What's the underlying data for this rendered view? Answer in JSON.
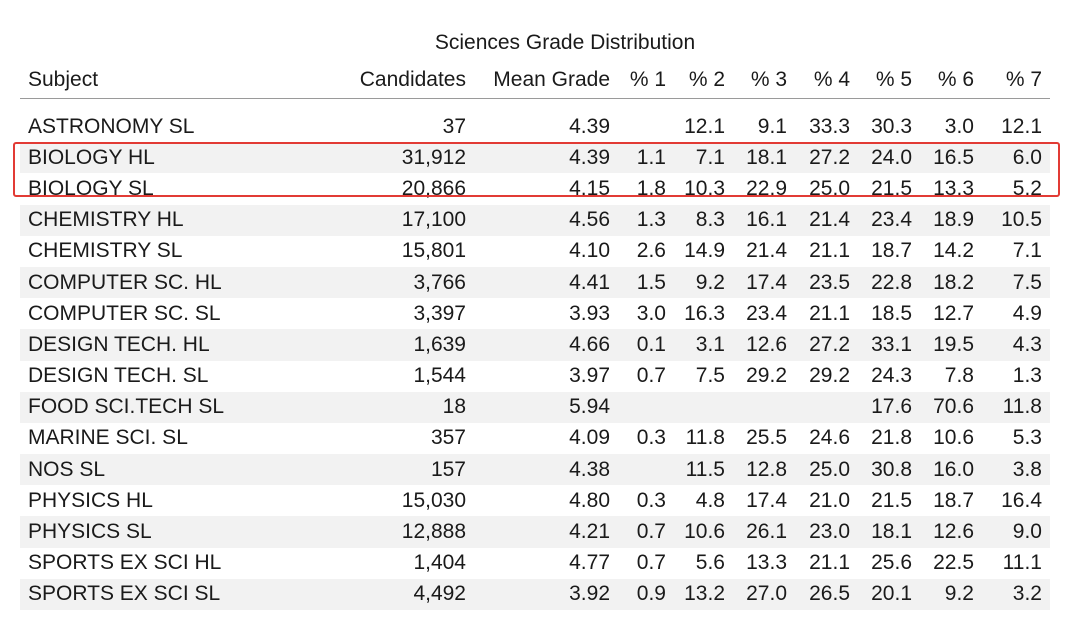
{
  "chart_data": {
    "type": "table",
    "title": "Sciences Grade Distribution",
    "columns": [
      "Subject",
      "Candidates",
      "Mean Grade",
      "% 1",
      "% 2",
      "% 3",
      "% 4",
      "% 5",
      "% 6",
      "% 7"
    ],
    "rows": [
      [
        "ASTRONOMY SL",
        "37",
        "4.39",
        "",
        "12.1",
        "9.1",
        "33.3",
        "30.3",
        "3.0",
        "12.1"
      ],
      [
        "BIOLOGY HL",
        "31,912",
        "4.39",
        "1.1",
        "7.1",
        "18.1",
        "27.2",
        "24.0",
        "16.5",
        "6.0"
      ],
      [
        "BIOLOGY SL",
        "20,866",
        "4.15",
        "1.8",
        "10.3",
        "22.9",
        "25.0",
        "21.5",
        "13.3",
        "5.2"
      ],
      [
        "CHEMISTRY HL",
        "17,100",
        "4.56",
        "1.3",
        "8.3",
        "16.1",
        "21.4",
        "23.4",
        "18.9",
        "10.5"
      ],
      [
        "CHEMISTRY SL",
        "15,801",
        "4.10",
        "2.6",
        "14.9",
        "21.4",
        "21.1",
        "18.7",
        "14.2",
        "7.1"
      ],
      [
        "COMPUTER SC. HL",
        "3,766",
        "4.41",
        "1.5",
        "9.2",
        "17.4",
        "23.5",
        "22.8",
        "18.2",
        "7.5"
      ],
      [
        "COMPUTER SC. SL",
        "3,397",
        "3.93",
        "3.0",
        "16.3",
        "23.4",
        "21.1",
        "18.5",
        "12.7",
        "4.9"
      ],
      [
        "DESIGN TECH. HL",
        "1,639",
        "4.66",
        "0.1",
        "3.1",
        "12.6",
        "27.2",
        "33.1",
        "19.5",
        "4.3"
      ],
      [
        "DESIGN TECH. SL",
        "1,544",
        "3.97",
        "0.7",
        "7.5",
        "29.2",
        "29.2",
        "24.3",
        "7.8",
        "1.3"
      ],
      [
        "FOOD SCI.TECH SL",
        "18",
        "5.94",
        "",
        "",
        "",
        "",
        "17.6",
        "70.6",
        "11.8"
      ],
      [
        "MARINE SCI. SL",
        "357",
        "4.09",
        "0.3",
        "11.8",
        "25.5",
        "24.6",
        "21.8",
        "10.6",
        "5.3"
      ],
      [
        "NOS SL",
        "157",
        "4.38",
        "",
        "11.5",
        "12.8",
        "25.0",
        "30.8",
        "16.0",
        "3.8"
      ],
      [
        "PHYSICS HL",
        "15,030",
        "4.80",
        "0.3",
        "4.8",
        "17.4",
        "21.0",
        "21.5",
        "18.7",
        "16.4"
      ],
      [
        "PHYSICS SL",
        "12,888",
        "4.21",
        "0.7",
        "10.6",
        "26.1",
        "23.0",
        "18.1",
        "12.6",
        "9.0"
      ],
      [
        "SPORTS EX SCI HL",
        "1,404",
        "4.77",
        "0.7",
        "5.6",
        "13.3",
        "21.1",
        "25.6",
        "22.5",
        "11.1"
      ],
      [
        "SPORTS EX SCI SL",
        "4,492",
        "3.92",
        "0.9",
        "13.2",
        "27.0",
        "26.5",
        "20.1",
        "9.2",
        "3.2"
      ]
    ],
    "highlighted_rows": [
      "BIOLOGY HL",
      "BIOLOGY SL"
    ],
    "colors": {
      "stripe": "#f2f2f2",
      "highlight_border": "#e23b35",
      "text": "#1a1a1a"
    }
  }
}
